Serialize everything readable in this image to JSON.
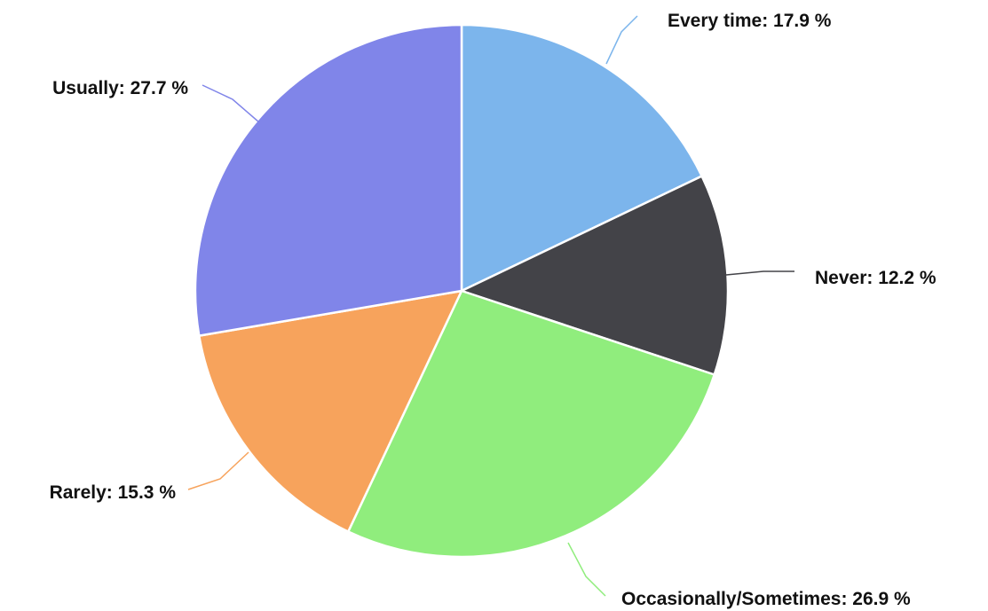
{
  "chart_data": {
    "type": "pie",
    "title": "",
    "unit_suffix": " %",
    "slices": [
      {
        "label": "Every time",
        "value": 17.9,
        "color": "#7cb5ec",
        "line_color": "#7cb5ec"
      },
      {
        "label": "Never",
        "value": 12.2,
        "color": "#434348",
        "line_color": "#434348"
      },
      {
        "label": "Occasionally/Sometimes",
        "value": 26.9,
        "color": "#90ed7d",
        "line_color": "#90ed7d"
      },
      {
        "label": "Rarely",
        "value": 15.3,
        "color": "#f7a35c",
        "line_color": "#f7a35c"
      },
      {
        "label": "Usually",
        "value": 27.7,
        "color": "#8085e9",
        "line_color": "#8085e9"
      }
    ],
    "start_direction": "12 o'clock, clockwise",
    "legend": "none"
  }
}
